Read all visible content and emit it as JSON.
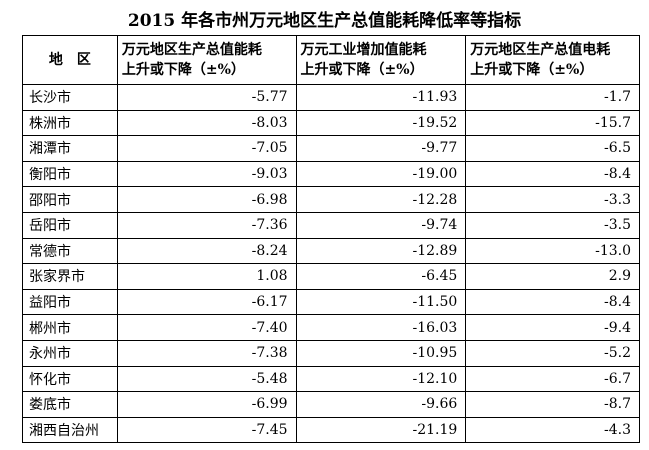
{
  "title": "2015 年各市州万元地区生产总值能耗降低率等指标",
  "table": {
    "header": [
      [
        "地　区"
      ],
      [
        "万元地区生产总值能耗",
        "上升或下降（±%）"
      ],
      [
        "万元工业增加值能耗",
        "上升或下降（±%）"
      ],
      [
        "万元地区生产总值电耗",
        "上升或下降（±%）"
      ]
    ],
    "rows": [
      [
        "长沙市",
        "-5.77",
        "-11.93",
        "-1.7"
      ],
      [
        "株洲市",
        "-8.03",
        "-19.52",
        "-15.7"
      ],
      [
        "湘潭市",
        "-7.05",
        "-9.77",
        "-6.5"
      ],
      [
        "衡阳市",
        "-9.03",
        "-19.00",
        "-8.4"
      ],
      [
        "邵阳市",
        "-6.98",
        "-12.28",
        "-3.3"
      ],
      [
        "岳阳市",
        "-7.36",
        "-9.74",
        "-3.5"
      ],
      [
        "常德市",
        "-8.24",
        "-12.89",
        "-13.0"
      ],
      [
        "张家界市",
        "1.08",
        "-6.45",
        "2.9"
      ],
      [
        "益阳市",
        "-6.17",
        "-11.50",
        "-8.4"
      ],
      [
        "郴州市",
        "-7.40",
        "-16.03",
        "-9.4"
      ],
      [
        "永州市",
        "-7.38",
        "-10.95",
        "-5.2"
      ],
      [
        "怀化市",
        "-5.48",
        "-12.10",
        "-6.7"
      ],
      [
        "娄底市",
        "-6.99",
        "-9.66",
        "-8.7"
      ],
      [
        "湘西自治州",
        "-7.45",
        "-21.19",
        "-4.3"
      ]
    ]
  }
}
